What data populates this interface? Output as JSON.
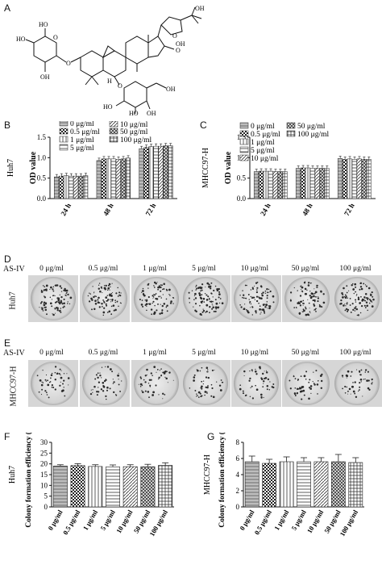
{
  "panels": {
    "A": {
      "letter": "A"
    },
    "B": {
      "letter": "B"
    },
    "C": {
      "letter": "C"
    },
    "D": {
      "letter": "D",
      "treatment_label": "AS-IV",
      "row_label": "Huh7"
    },
    "E": {
      "letter": "E",
      "treatment_label": "AS-IV",
      "row_label": "MHCC97-H"
    },
    "F": {
      "letter": "F"
    },
    "G": {
      "letter": "G"
    }
  },
  "structure_labels": {
    "sugar1_ho_top": "HO",
    "sugar1_ho_left": "HO",
    "sugar1_oh": "OH",
    "sugar1_o": "O",
    "link_o": "O",
    "right_o1": "O",
    "right_o2": "O",
    "right_oh_top": "OH",
    "right_oh_ring": "OH",
    "sugar2_o": "O",
    "sugar2_oh_right": "OH",
    "sugar2_ho_left": "HO",
    "sugar2_ho_bottom": "HO",
    "sugar2_oh_bottom": "OH",
    "h_label": "H"
  },
  "dish_headers": [
    "0 μg/ml",
    "0.5 μg/ml",
    "1 μg/ml",
    "5 μg/ml",
    "10 μg/ml",
    "50 μg/ml",
    "100 μg/ml"
  ],
  "chart_data": [
    {
      "panel": "B",
      "type": "bar",
      "ylabel_cell": "Huh7",
      "ylabel": "OD value",
      "categories": [
        "24 h",
        "48 h",
        "72 h"
      ],
      "ylim": [
        0.0,
        1.5
      ],
      "yticks": [
        "0.0",
        "0.5",
        "1.0",
        "1.5"
      ],
      "legend_position": "top",
      "series": [
        {
          "name": "0 μg/ml",
          "values": [
            0.53,
            0.93,
            1.22
          ]
        },
        {
          "name": "0.5 μg/ml",
          "values": [
            0.55,
            0.97,
            1.25
          ]
        },
        {
          "name": "1 μg/ml",
          "values": [
            0.56,
            0.97,
            1.27
          ]
        },
        {
          "name": "5 μg/ml",
          "values": [
            0.55,
            0.97,
            1.28
          ]
        },
        {
          "name": "10 μg/ml",
          "values": [
            0.55,
            0.96,
            1.28
          ]
        },
        {
          "name": "50 μg/ml",
          "values": [
            0.55,
            0.97,
            1.29
          ]
        },
        {
          "name": "100 μg/ml",
          "values": [
            0.56,
            0.99,
            1.29
          ]
        }
      ]
    },
    {
      "panel": "C",
      "type": "bar",
      "ylabel_cell": "MHCC97-H",
      "ylabel": "OD value",
      "categories": [
        "24 h",
        "48 h",
        "72 h"
      ],
      "ylim": [
        0.0,
        1.5
      ],
      "yticks": [
        "0.0",
        "0.5",
        "1.0",
        "1.5"
      ],
      "legend_position": "top",
      "series": [
        {
          "name": "0 μg/ml",
          "values": [
            0.66,
            0.74,
            0.98
          ]
        },
        {
          "name": "0.5 μg/ml",
          "values": [
            0.67,
            0.75,
            0.96
          ]
        },
        {
          "name": "1 μg/ml",
          "values": [
            0.67,
            0.75,
            0.97
          ]
        },
        {
          "name": "5 μg/ml",
          "values": [
            0.67,
            0.74,
            0.96
          ]
        },
        {
          "name": "10 μg/ml",
          "values": [
            0.66,
            0.74,
            0.97
          ]
        },
        {
          "name": "50 μg/ml",
          "values": [
            0.66,
            0.74,
            0.96
          ]
        },
        {
          "name": "100 μg/ml",
          "values": [
            0.66,
            0.74,
            0.96
          ]
        }
      ]
    },
    {
      "panel": "F",
      "type": "bar",
      "ylabel_cell": "Huh7",
      "ylabel": "Colony formation efficiency (%)",
      "categories": [
        "0 μg/ml",
        "0.5 μg/ml",
        "1 μg/ml",
        "5 μg/ml",
        "10 μg/ml",
        "50 μg/ml",
        "100 μg/ml"
      ],
      "values": [
        19.0,
        19.2,
        18.8,
        18.6,
        18.7,
        18.7,
        19.3
      ],
      "errors": [
        0.6,
        0.9,
        0.8,
        0.9,
        0.9,
        1.1,
        1.2
      ],
      "ylim": [
        0,
        30
      ],
      "yticks": [
        "0",
        "5",
        "10",
        "15",
        "20",
        "25",
        "30"
      ]
    },
    {
      "panel": "G",
      "type": "bar",
      "ylabel_cell": "MHCC97-H",
      "ylabel": "Colony formation efficiency (%)",
      "categories": [
        "0 μg/ml",
        "0.5 μg/ml",
        "1 μg/ml",
        "5 μg/ml",
        "10 μg/ml",
        "50 μg/ml",
        "100 μg/ml"
      ],
      "values": [
        5.6,
        5.4,
        5.6,
        5.6,
        5.6,
        5.6,
        5.5
      ],
      "errors": [
        0.7,
        0.5,
        0.6,
        0.5,
        0.5,
        0.9,
        0.6
      ],
      "ylim": [
        0,
        8
      ],
      "yticks": [
        "0",
        "2",
        "4",
        "6",
        "8"
      ]
    }
  ]
}
